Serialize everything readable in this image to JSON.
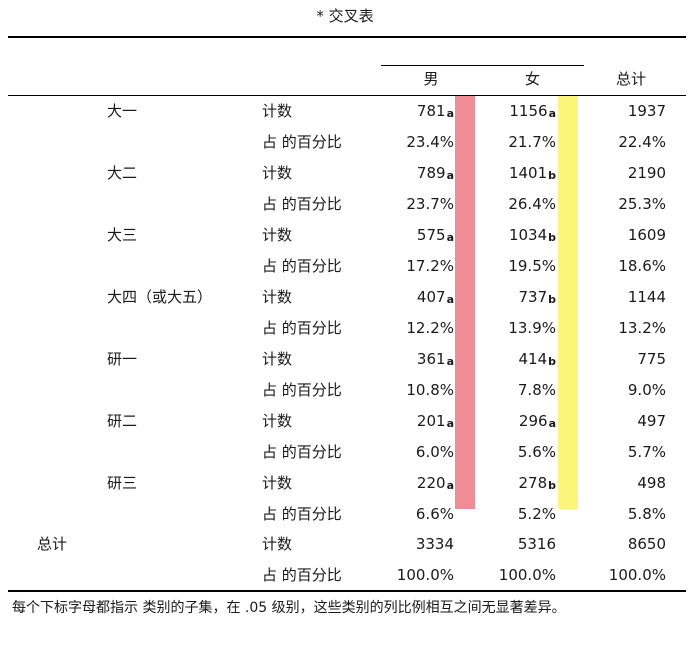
{
  "title": "* 交叉表",
  "headers": {
    "male": "男",
    "female": "女",
    "total": "总计"
  },
  "rows": [
    {
      "category": "大一",
      "stat": "计数",
      "male": "781",
      "male_sub": "a",
      "female": "1156",
      "female_sub": "a",
      "total": "1937"
    },
    {
      "category": "",
      "stat": "占 的百分比",
      "male": "23.4%",
      "male_sub": "",
      "female": "21.7%",
      "female_sub": "",
      "total": "22.4%"
    },
    {
      "category": "大二",
      "stat": "计数",
      "male": "789",
      "male_sub": "a",
      "female": "1401",
      "female_sub": "b",
      "total": "2190"
    },
    {
      "category": "",
      "stat": "占 的百分比",
      "male": "23.7%",
      "male_sub": "",
      "female": "26.4%",
      "female_sub": "",
      "total": "25.3%"
    },
    {
      "category": "大三",
      "stat": "计数",
      "male": "575",
      "male_sub": "a",
      "female": "1034",
      "female_sub": "b",
      "total": "1609"
    },
    {
      "category": "",
      "stat": "占 的百分比",
      "male": "17.2%",
      "male_sub": "",
      "female": "19.5%",
      "female_sub": "",
      "total": "18.6%"
    },
    {
      "category": "大四（或大五）",
      "stat": "计数",
      "male": "407",
      "male_sub": "a",
      "female": "737",
      "female_sub": "b",
      "total": "1144"
    },
    {
      "category": "",
      "stat": "占 的百分比",
      "male": "12.2%",
      "male_sub": "",
      "female": "13.9%",
      "female_sub": "",
      "total": "13.2%"
    },
    {
      "category": "研一",
      "stat": "计数",
      "male": "361",
      "male_sub": "a",
      "female": "414",
      "female_sub": "b",
      "total": "775"
    },
    {
      "category": "",
      "stat": "占 的百分比",
      "male": "10.8%",
      "male_sub": "",
      "female": "7.8%",
      "female_sub": "",
      "total": "9.0%"
    },
    {
      "category": "研二",
      "stat": "计数",
      "male": "201",
      "male_sub": "a",
      "female": "296",
      "female_sub": "a",
      "total": "497"
    },
    {
      "category": "",
      "stat": "占 的百分比",
      "male": "6.0%",
      "male_sub": "",
      "female": "5.6%",
      "female_sub": "",
      "total": "5.7%"
    },
    {
      "category": "研三",
      "stat": "计数",
      "male": "220",
      "male_sub": "a",
      "female": "278",
      "female_sub": "b",
      "total": "498"
    },
    {
      "category": "",
      "stat": "占 的百分比",
      "male": "6.6%",
      "male_sub": "",
      "female": "5.2%",
      "female_sub": "",
      "total": "5.8%"
    }
  ],
  "total_row": {
    "label": "总计",
    "count": {
      "stat": "计数",
      "male": "3334",
      "female": "5316",
      "total": "8650"
    },
    "percent": {
      "stat": "占 的百分比",
      "male": "100.0%",
      "female": "100.0%",
      "total": "100.0%"
    }
  },
  "footnote": "每个下标字母都指示  类别的子集，在 .05 级别，这些类别的列比例相互之间无显著差异。",
  "colors": {
    "male_band": "#f08c96",
    "female_band": "#fbf57a"
  }
}
